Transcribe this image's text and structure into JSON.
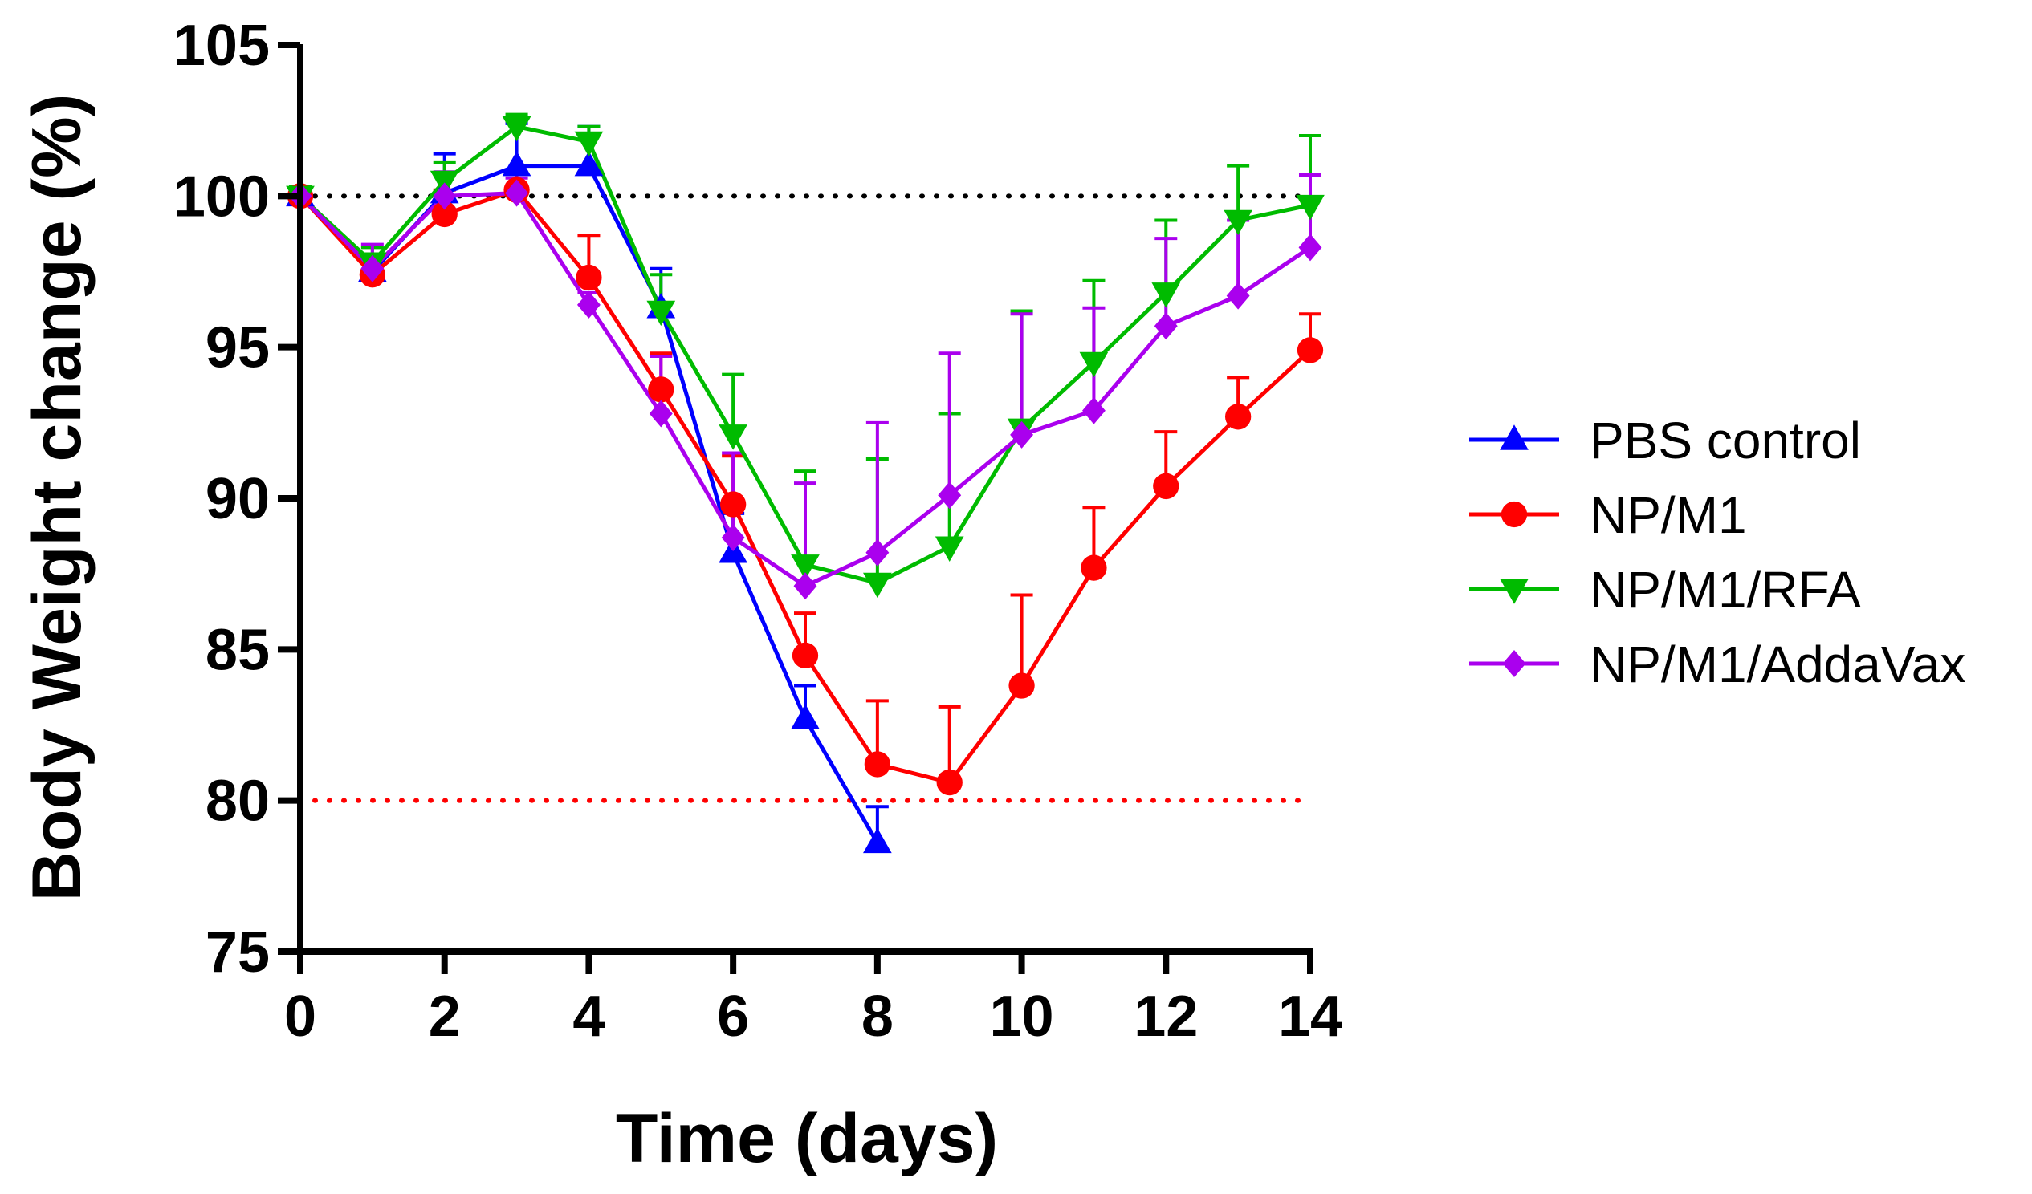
{
  "chart_data": {
    "type": "line",
    "title": "",
    "xlabel": "Time (days)",
    "ylabel": "Body Weight change (%)",
    "xlim": [
      0,
      14
    ],
    "ylim": [
      75,
      105
    ],
    "xticks": [
      0,
      2,
      4,
      6,
      8,
      10,
      12,
      14
    ],
    "yticks": [
      75,
      80,
      85,
      90,
      95,
      100,
      105
    ],
    "grid": false,
    "legend_position": "right",
    "reference_lines": [
      {
        "y": 100,
        "color": "#000000",
        "style": "dotted"
      },
      {
        "y": 80,
        "color": "#ff0000",
        "style": "dotted"
      }
    ],
    "series": [
      {
        "name": "PBS control",
        "color": "#0000ff",
        "marker": "triangle-up",
        "x": [
          0,
          1,
          2,
          3,
          4,
          5,
          6,
          7,
          8
        ],
        "values": [
          100,
          97.5,
          100.1,
          101.0,
          101.0,
          96.3,
          88.2,
          82.7,
          78.6
        ],
        "errors": [
          0.1,
          0.4,
          1.3,
          1.4,
          1.3,
          1.3,
          1.3,
          1.1,
          1.2
        ]
      },
      {
        "name": "NP/M1",
        "color": "#ff0000",
        "marker": "circle",
        "x": [
          0,
          1,
          2,
          3,
          4,
          5,
          6,
          7,
          8,
          9,
          10,
          11,
          12,
          13,
          14
        ],
        "values": [
          100,
          97.4,
          99.4,
          100.2,
          97.3,
          93.6,
          89.8,
          84.8,
          81.2,
          80.6,
          83.8,
          87.7,
          90.4,
          92.7,
          94.9
        ],
        "errors": [
          0.2,
          0.6,
          0.8,
          0.6,
          1.4,
          1.2,
          1.6,
          1.4,
          2.1,
          2.5,
          3.0,
          2.0,
          1.8,
          1.3,
          1.2
        ]
      },
      {
        "name": "NP/M1/RFA",
        "color": "#00bb00",
        "marker": "triangle-down",
        "x": [
          0,
          1,
          2,
          3,
          4,
          5,
          6,
          7,
          8,
          9,
          10,
          11,
          12,
          13,
          14
        ],
        "values": [
          100,
          97.8,
          100.5,
          102.3,
          101.8,
          96.2,
          92.1,
          87.8,
          87.2,
          88.4,
          92.3,
          94.5,
          96.8,
          99.2,
          99.7
        ],
        "errors": [
          0.3,
          0.5,
          0.6,
          0.4,
          0.5,
          1.2,
          2.0,
          3.1,
          4.1,
          4.4,
          3.9,
          2.7,
          2.4,
          1.8,
          2.3
        ]
      },
      {
        "name": "NP/M1/AddaVax",
        "color": "#aa00ee",
        "marker": "diamond",
        "x": [
          0,
          1,
          2,
          3,
          4,
          5,
          6,
          7,
          8,
          9,
          10,
          11,
          12,
          13,
          14
        ],
        "values": [
          100,
          97.6,
          100.0,
          100.1,
          96.4,
          92.8,
          88.7,
          87.1,
          88.2,
          90.1,
          92.1,
          92.9,
          95.7,
          96.7,
          98.3
        ],
        "errors": [
          0.2,
          0.8,
          0.8,
          0.5,
          0.4,
          1.9,
          2.8,
          3.4,
          4.3,
          4.7,
          4.0,
          3.4,
          2.9,
          2.5,
          2.4
        ]
      }
    ]
  }
}
